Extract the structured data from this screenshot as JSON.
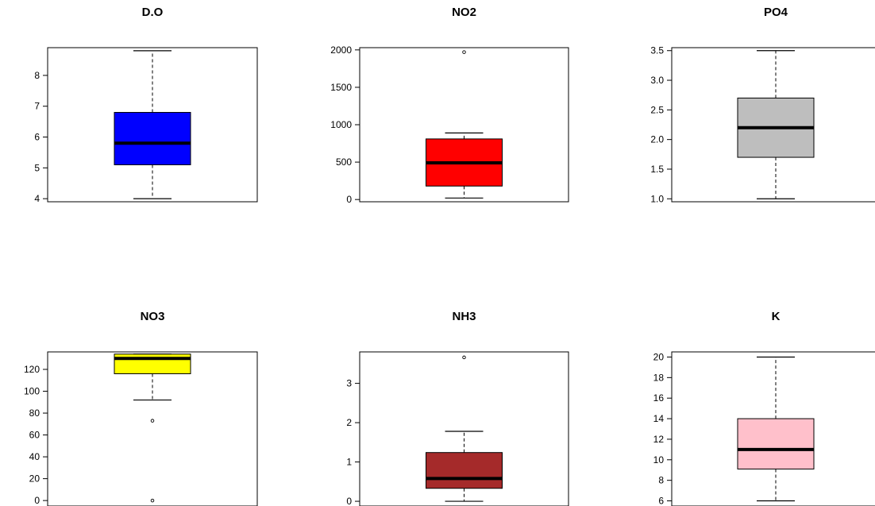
{
  "chart_data": [
    {
      "type": "box",
      "title": "D.O",
      "color": "#0000ff",
      "ylim": [
        3.9,
        8.9
      ],
      "ticks": [
        4,
        5,
        6,
        7,
        8
      ],
      "stats": {
        "whisker_low": 4.0,
        "q1": 5.1,
        "median": 5.8,
        "q3": 6.8,
        "whisker_high": 8.8
      },
      "outliers": []
    },
    {
      "type": "box",
      "title": "NO2",
      "color": "#ff0000",
      "ylim": [
        -30,
        2030
      ],
      "ticks": [
        0,
        500,
        1000,
        1500,
        2000
      ],
      "stats": {
        "whisker_low": 20,
        "q1": 180,
        "median": 490,
        "q3": 810,
        "whisker_high": 890
      },
      "outliers": [
        1970
      ]
    },
    {
      "type": "box",
      "title": "PO4",
      "color": "#bebebe",
      "ylim": [
        0.95,
        3.55
      ],
      "ticks": [
        1.0,
        1.5,
        2.0,
        2.5,
        3.0,
        3.5
      ],
      "tick_labels": [
        "1.0",
        "1.5",
        "2.0",
        "2.5",
        "3.0",
        "3.5"
      ],
      "stats": {
        "whisker_low": 1.0,
        "q1": 1.7,
        "median": 2.2,
        "q3": 2.7,
        "whisker_high": 3.5
      },
      "outliers": []
    },
    {
      "type": "box",
      "title": "NO3",
      "color": "#ffff00",
      "ylim": [
        -5,
        136
      ],
      "ticks": [
        0,
        20,
        40,
        60,
        80,
        100,
        120
      ],
      "stats": {
        "whisker_low": 92,
        "q1": 116,
        "median": 130,
        "q3": 134,
        "whisker_high": 134
      },
      "outliers": [
        73,
        0
      ]
    },
    {
      "type": "box",
      "title": "NH3",
      "color": "#a52a2a",
      "ylim": [
        -0.12,
        3.8
      ],
      "ticks": [
        0,
        1,
        2,
        3
      ],
      "stats": {
        "whisker_low": 0.0,
        "q1": 0.33,
        "median": 0.58,
        "q3": 1.24,
        "whisker_high": 1.78
      },
      "outliers": [
        3.66
      ]
    },
    {
      "type": "box",
      "title": "K",
      "color": "#ffc0cb",
      "ylim": [
        5.5,
        20.5
      ],
      "ticks": [
        6,
        8,
        10,
        12,
        14,
        16,
        18,
        20
      ],
      "stats": {
        "whisker_low": 6,
        "q1": 9.1,
        "median": 11.0,
        "q3": 14.0,
        "whisker_high": 20
      },
      "outliers": []
    }
  ]
}
